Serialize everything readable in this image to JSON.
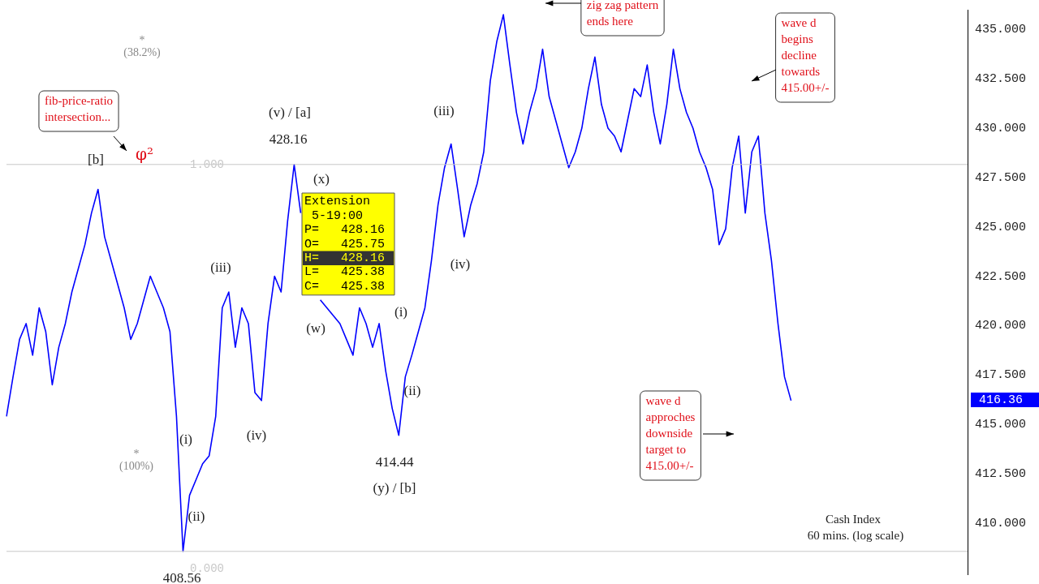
{
  "chart_data": {
    "type": "line",
    "title": "Cash Index",
    "subtitle": "60 mins. (log scale)",
    "categories": [
      null,
      null,
      null,
      null,
      null,
      null,
      null,
      null,
      null,
      null,
      null,
      null,
      null,
      null,
      null,
      null,
      null,
      null,
      null,
      null,
      null,
      null,
      null,
      null,
      null,
      null,
      null,
      null,
      null,
      null,
      null,
      null,
      null,
      null,
      null,
      null,
      null,
      null,
      null,
      null,
      null,
      null,
      null,
      null,
      null,
      null,
      null,
      null,
      null,
      null,
      null,
      null,
      null,
      null,
      null,
      null,
      null,
      null,
      null,
      null,
      null,
      null,
      null,
      null,
      null,
      null,
      null,
      null,
      null,
      null,
      null,
      null,
      null,
      null,
      null,
      null,
      null,
      null,
      null,
      null,
      null,
      null,
      null,
      null,
      null,
      null,
      null,
      null,
      null,
      null,
      null,
      null,
      null,
      null,
      null,
      null,
      null,
      null,
      null,
      null,
      null,
      null,
      null,
      null,
      null,
      null,
      null,
      null,
      null,
      null,
      null,
      null,
      null,
      null,
      null,
      null,
      null,
      null,
      null,
      null,
      null,
      null,
      null,
      null,
      null,
      null,
      null,
      null,
      null,
      null,
      null,
      null,
      null,
      null,
      null,
      null,
      null,
      null,
      null,
      null,
      null,
      null,
      null,
      null,
      null,
      null,
      null,
      null
    ],
    "series": [
      {
        "color": "#0000ff",
        "values": [
          415.4,
          417.4,
          419.3,
          420.1,
          418.5,
          420.9,
          419.7,
          417.0,
          418.9,
          420.1,
          421.7,
          422.9,
          424.1,
          425.7,
          426.9,
          424.5,
          423.3,
          422.1,
          420.9,
          419.3,
          420.1,
          421.3,
          422.5,
          421.7,
          420.9,
          419.7,
          415.4,
          408.56,
          411.4,
          412.2,
          413.0,
          413.4,
          415.4,
          420.9,
          421.7,
          418.9,
          420.9,
          420.1,
          416.6,
          416.2,
          420.1,
          422.5,
          421.7,
          425.3,
          428.16,
          425.7,
          null,
          null,
          421.3,
          420.9,
          420.5,
          420.1,
          419.3,
          418.5,
          420.9,
          420.1,
          418.9,
          420.1,
          417.7,
          415.8,
          414.44,
          417.4,
          418.5,
          419.7,
          420.9,
          423.3,
          426.1,
          428.0,
          429.2,
          426.9,
          424.5,
          426.1,
          427.2,
          428.8,
          432.4,
          434.4,
          435.75,
          433.2,
          430.8,
          429.2,
          430.8,
          432.0,
          434.0,
          431.6,
          430.4,
          429.2,
          428.0,
          428.8,
          430.0,
          432.0,
          433.6,
          431.2,
          430.0,
          429.6,
          428.8,
          430.4,
          432.0,
          431.6,
          433.2,
          430.8,
          429.2,
          431.2,
          434.0,
          432.0,
          430.8,
          430.0,
          428.8,
          428.0,
          426.9,
          424.1,
          424.9,
          428.0,
          429.6,
          425.7,
          428.8,
          429.6,
          425.7,
          423.3,
          420.1,
          417.4,
          416.2,
          null,
          null,
          null,
          null,
          null,
          null,
          null,
          null,
          null,
          null,
          null,
          null,
          null,
          null,
          null,
          null,
          null,
          null,
          null,
          null,
          null,
          null,
          null,
          null,
          null,
          null,
          null
        ]
      }
    ],
    "ylim": [
      407.4,
      436.0
    ],
    "yticks": [
      {
        "value": 410,
        "label": "410.000"
      },
      {
        "value": 412.5,
        "label": "412.500"
      },
      {
        "value": 415,
        "label": "415.000"
      },
      {
        "value": 417.5,
        "label": "417.500"
      },
      {
        "value": 420,
        "label": "420.000"
      },
      {
        "value": 422.5,
        "label": "422.500"
      },
      {
        "value": 425,
        "label": "425.000"
      },
      {
        "value": 427.5,
        "label": "427.500"
      },
      {
        "value": 430,
        "label": "430.000"
      },
      {
        "value": 432.5,
        "label": "432.500"
      },
      {
        "value": 435,
        "label": "435.000"
      }
    ],
    "tick_labels": "y",
    "grid": false,
    "legend": false,
    "marker": "none",
    "line_style": "solid",
    "ref_lines": [
      {
        "axis": "y",
        "value": 428.16,
        "color": "#c8c8c8"
      },
      {
        "axis": "y",
        "value": 408.56,
        "color": "#c8c8c8"
      }
    ],
    "annotations": [
      "fib-price-ratio\nintersection...",
      "[b]",
      "φ²",
      "*\n(38.2%)",
      "*\n(100%)",
      "(v) / [a]",
      "428.16",
      "(x)",
      "Extension\n 5-19:00\nP=   428.16\nO=   425.75\nH=   428.16\nL=   425.38\nC=   425.38",
      "(w)",
      "(iii)",
      "(iv)",
      "(i)",
      "(ii)",
      "408.56",
      "(i)",
      "(ii)",
      "414.44",
      "(y) / [b]",
      "(iii)",
      "(iv)",
      "zig zag pattern\nends here",
      "wave d\nbegins\ndecline\ntowards\n415.00+/-",
      "wave d\napproches\ndownside\ntarget to\n415.00+/-",
      "416.36",
      "1.000",
      "0.000"
    ]
  }
}
